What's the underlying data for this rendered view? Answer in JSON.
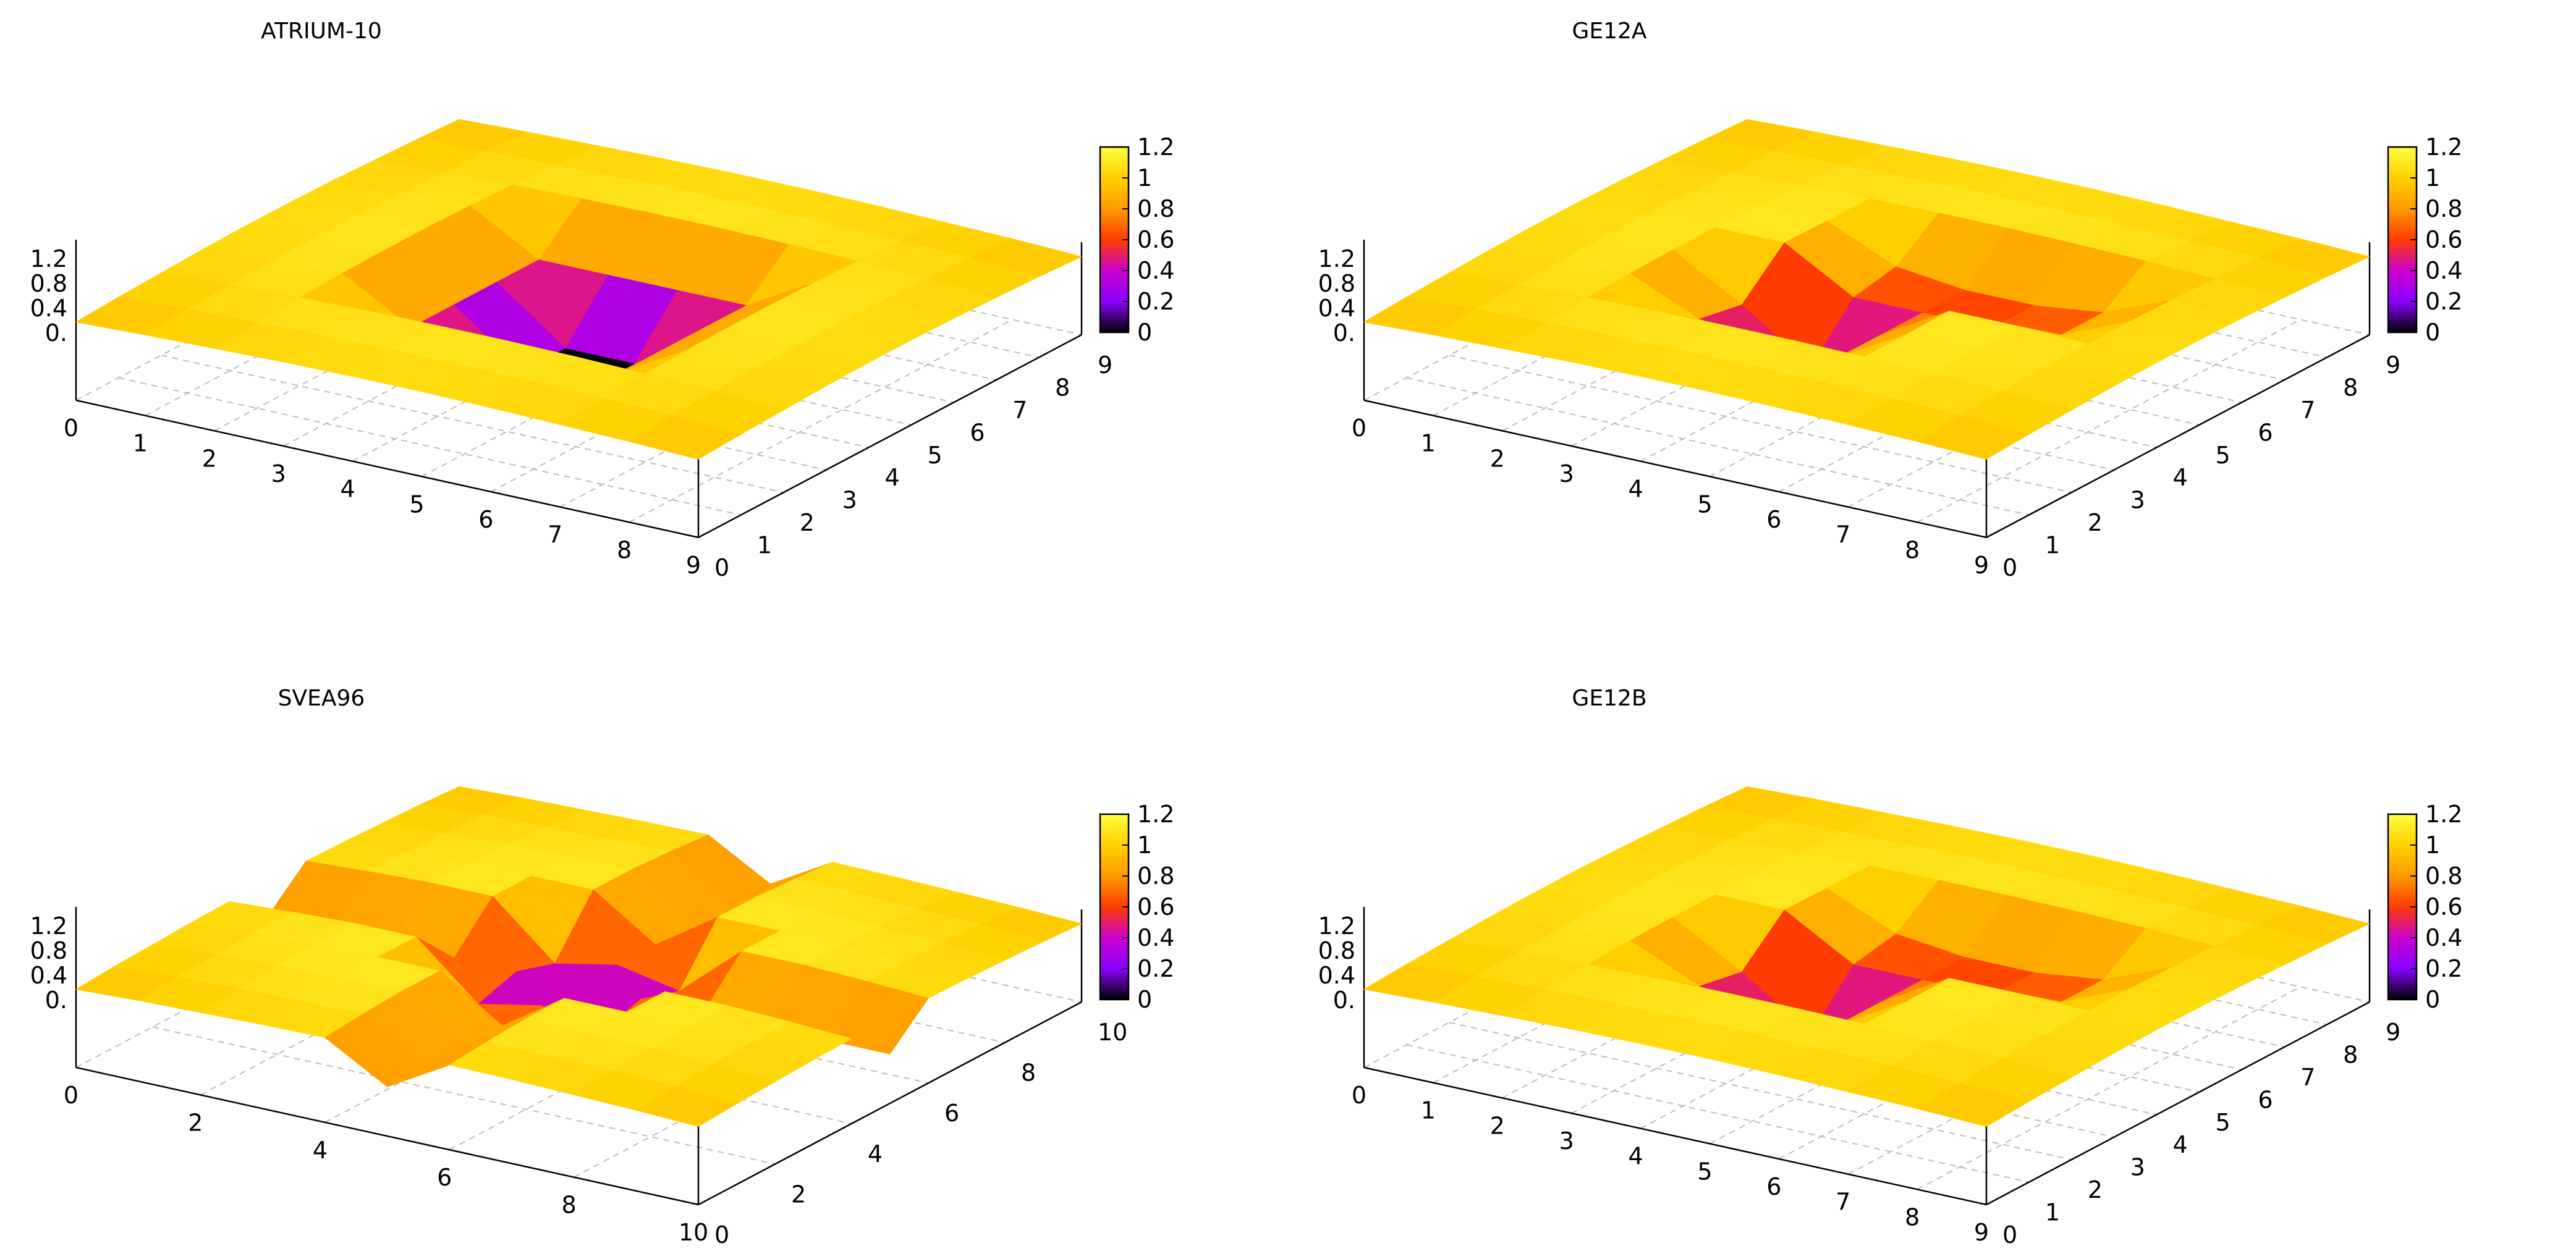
{
  "chart_data": [
    {
      "type": "surface3d",
      "title": "ATRIUM-10",
      "x_ticks": [
        "0",
        "1",
        "2",
        "3",
        "4",
        "5",
        "6",
        "7",
        "8",
        "9"
      ],
      "y_ticks": [
        "0",
        "1",
        "2",
        "3",
        "4",
        "5",
        "6",
        "7",
        "8",
        "9"
      ],
      "z_ticks": [
        "0.",
        "0.4",
        "0.8",
        "1.2"
      ],
      "colorbar_ticks": [
        "0",
        "0.2",
        "0.4",
        "0.6",
        "0.8",
        "1",
        "1.2"
      ],
      "colorbar_range": [
        0,
        1.2
      ],
      "colormap": [
        "#000000",
        "#8a00ff",
        "#cc00cc",
        "#ff3c00",
        "#ff9a00",
        "#ffd000",
        "#ffff40"
      ],
      "values": [
        [
          0.95,
          0.98,
          1.0,
          1.02,
          1.03,
          1.03,
          1.02,
          1.0,
          0.98,
          0.95
        ],
        [
          0.98,
          1.02,
          1.04,
          1.06,
          1.07,
          1.07,
          1.06,
          1.04,
          1.02,
          0.98
        ],
        [
          1.0,
          1.04,
          1.07,
          1.09,
          1.1,
          1.1,
          1.09,
          1.07,
          1.04,
          1.0
        ],
        [
          1.02,
          1.06,
          1.09,
          0.62,
          0.62,
          0.62,
          0.62,
          1.09,
          1.06,
          1.02
        ],
        [
          1.03,
          1.07,
          1.1,
          0.62,
          0.0,
          0.0,
          0.62,
          1.1,
          1.07,
          1.03
        ],
        [
          1.03,
          1.07,
          1.1,
          0.62,
          0.0,
          0.0,
          0.62,
          1.1,
          1.07,
          1.03
        ],
        [
          1.02,
          1.06,
          1.09,
          0.62,
          0.62,
          0.62,
          0.62,
          1.09,
          1.06,
          1.02
        ],
        [
          1.0,
          1.04,
          1.07,
          1.09,
          1.1,
          1.1,
          1.09,
          1.07,
          1.04,
          1.0
        ],
        [
          0.98,
          1.02,
          1.04,
          1.06,
          1.07,
          1.07,
          1.06,
          1.04,
          1.02,
          0.98
        ],
        [
          0.95,
          0.98,
          1.0,
          1.02,
          1.03,
          1.03,
          1.02,
          1.0,
          0.98,
          0.95
        ]
      ]
    },
    {
      "type": "surface3d",
      "title": "GE12A",
      "x_ticks": [
        "0",
        "1",
        "2",
        "3",
        "4",
        "5",
        "6",
        "7",
        "8",
        "9"
      ],
      "y_ticks": [
        "0",
        "1",
        "2",
        "3",
        "4",
        "5",
        "6",
        "7",
        "8",
        "9"
      ],
      "z_ticks": [
        "0.",
        "0.4",
        "0.8",
        "1.2"
      ],
      "colorbar_ticks": [
        "0",
        "0.2",
        "0.4",
        "0.6",
        "0.8",
        "1",
        "1.2"
      ],
      "colorbar_range": [
        0,
        1.2
      ],
      "colormap": [
        "#000000",
        "#8a00ff",
        "#cc00cc",
        "#ff3c00",
        "#ff9a00",
        "#ffd000",
        "#ffff40"
      ],
      "values": [
        [
          0.95,
          0.98,
          1.0,
          1.02,
          1.03,
          1.03,
          1.02,
          1.0,
          0.98,
          0.95
        ],
        [
          0.98,
          1.02,
          1.04,
          1.06,
          1.07,
          1.07,
          1.06,
          1.04,
          1.02,
          0.98
        ],
        [
          1.0,
          1.04,
          1.07,
          1.09,
          1.1,
          1.1,
          1.09,
          1.07,
          1.04,
          1.0
        ],
        [
          1.02,
          1.06,
          1.09,
          0.72,
          0.62,
          0.62,
          1.09,
          1.09,
          1.06,
          1.02
        ],
        [
          1.03,
          1.07,
          1.1,
          0.62,
          0.05,
          0.62,
          1.1,
          1.1,
          1.07,
          1.03
        ],
        [
          1.03,
          1.07,
          1.1,
          1.1,
          0.62,
          0.62,
          0.62,
          0.72,
          1.07,
          1.03
        ],
        [
          1.02,
          1.06,
          1.09,
          1.09,
          0.72,
          0.62,
          0.62,
          0.72,
          1.06,
          1.02
        ],
        [
          1.0,
          1.04,
          1.07,
          1.09,
          1.1,
          1.1,
          1.09,
          1.07,
          1.04,
          1.0
        ],
        [
          0.98,
          1.02,
          1.04,
          1.06,
          1.07,
          1.07,
          1.06,
          1.04,
          1.02,
          0.98
        ],
        [
          0.95,
          0.98,
          1.0,
          1.02,
          1.03,
          1.03,
          1.02,
          1.0,
          0.98,
          0.95
        ]
      ]
    },
    {
      "type": "surface3d",
      "title": "SVEA96",
      "x_ticks": [
        "0",
        "2",
        "4",
        "6",
        "8",
        "10"
      ],
      "y_ticks": [
        "0",
        "2",
        "4",
        "6",
        "8",
        "10"
      ],
      "z_ticks": [
        "0.",
        "0.4",
        "0.8",
        "1.2"
      ],
      "colorbar_ticks": [
        "0",
        "0.2",
        "0.4",
        "0.6",
        "0.8",
        "1",
        "1.2"
      ],
      "colorbar_range": [
        0,
        1.2
      ],
      "colormap": [
        "#000000",
        "#8a00ff",
        "#cc00cc",
        "#ff3c00",
        "#ff9a00",
        "#ffd000",
        "#ffff40"
      ],
      "values": [
        [
          0.95,
          0.98,
          1.0,
          1.02,
          1.03,
          0.6,
          1.03,
          1.02,
          1.0,
          0.98,
          0.95
        ],
        [
          0.98,
          1.02,
          1.04,
          1.06,
          1.07,
          0.6,
          1.07,
          1.06,
          1.04,
          1.02,
          0.98
        ],
        [
          1.0,
          1.04,
          1.07,
          1.09,
          1.1,
          0.6,
          1.1,
          1.09,
          1.07,
          1.04,
          1.0
        ],
        [
          1.02,
          1.06,
          1.09,
          1.1,
          1.1,
          0.6,
          1.1,
          1.1,
          1.09,
          1.06,
          1.02
        ],
        [
          1.03,
          1.07,
          1.1,
          1.1,
          0.45,
          0.6,
          0.45,
          1.1,
          1.1,
          1.07,
          1.03
        ],
        [
          0.6,
          0.6,
          0.6,
          0.6,
          0.6,
          0.0,
          0.6,
          0.6,
          0.6,
          0.6,
          0.6
        ],
        [
          1.03,
          1.07,
          1.1,
          1.1,
          0.45,
          0.6,
          0.45,
          1.1,
          1.1,
          1.07,
          1.03
        ],
        [
          1.02,
          1.06,
          1.09,
          1.1,
          1.1,
          0.6,
          1.1,
          1.1,
          1.09,
          1.06,
          1.02
        ],
        [
          1.0,
          1.04,
          1.07,
          1.09,
          1.1,
          0.6,
          1.1,
          1.09,
          1.07,
          1.04,
          1.0
        ],
        [
          0.98,
          1.02,
          1.04,
          1.06,
          1.07,
          0.6,
          1.07,
          1.06,
          1.04,
          1.02,
          0.98
        ],
        [
          0.95,
          0.98,
          1.0,
          1.02,
          1.03,
          0.6,
          1.03,
          1.02,
          1.0,
          0.98,
          0.95
        ]
      ]
    },
    {
      "type": "surface3d",
      "title": "GE12B",
      "x_ticks": [
        "0",
        "1",
        "2",
        "3",
        "4",
        "5",
        "6",
        "7",
        "8",
        "9"
      ],
      "y_ticks": [
        "0",
        "1",
        "2",
        "3",
        "4",
        "5",
        "6",
        "7",
        "8",
        "9"
      ],
      "z_ticks": [
        "0.",
        "0.4",
        "0.8",
        "1.2"
      ],
      "colorbar_ticks": [
        "0",
        "0.2",
        "0.4",
        "0.6",
        "0.8",
        "1",
        "1.2"
      ],
      "colorbar_range": [
        0,
        1.2
      ],
      "colormap": [
        "#000000",
        "#8a00ff",
        "#cc00cc",
        "#ff3c00",
        "#ff9a00",
        "#ffd000",
        "#ffff40"
      ],
      "values": [
        [
          0.95,
          0.98,
          1.0,
          1.02,
          1.03,
          1.03,
          1.02,
          1.0,
          0.98,
          0.95
        ],
        [
          0.98,
          1.02,
          1.04,
          1.06,
          1.07,
          1.07,
          1.06,
          1.04,
          1.02,
          0.98
        ],
        [
          1.0,
          1.04,
          1.07,
          1.09,
          1.1,
          1.1,
          1.09,
          1.07,
          1.04,
          1.0
        ],
        [
          1.02,
          1.06,
          1.09,
          0.72,
          0.62,
          0.62,
          1.09,
          1.09,
          1.06,
          1.02
        ],
        [
          1.03,
          1.07,
          1.1,
          0.62,
          0.05,
          0.62,
          1.1,
          1.1,
          1.07,
          1.03
        ],
        [
          1.03,
          1.07,
          1.1,
          1.1,
          0.62,
          0.62,
          0.62,
          0.72,
          1.07,
          1.03
        ],
        [
          1.02,
          1.06,
          1.09,
          1.09,
          0.72,
          0.62,
          0.62,
          0.72,
          1.06,
          1.02
        ],
        [
          1.0,
          1.04,
          1.07,
          1.09,
          1.1,
          1.1,
          1.09,
          1.07,
          1.04,
          1.0
        ],
        [
          0.98,
          1.02,
          1.04,
          1.06,
          1.07,
          1.07,
          1.06,
          1.04,
          1.02,
          0.98
        ],
        [
          0.95,
          0.98,
          1.0,
          1.02,
          1.03,
          1.03,
          1.02,
          1.0,
          0.98,
          0.95
        ]
      ]
    }
  ]
}
